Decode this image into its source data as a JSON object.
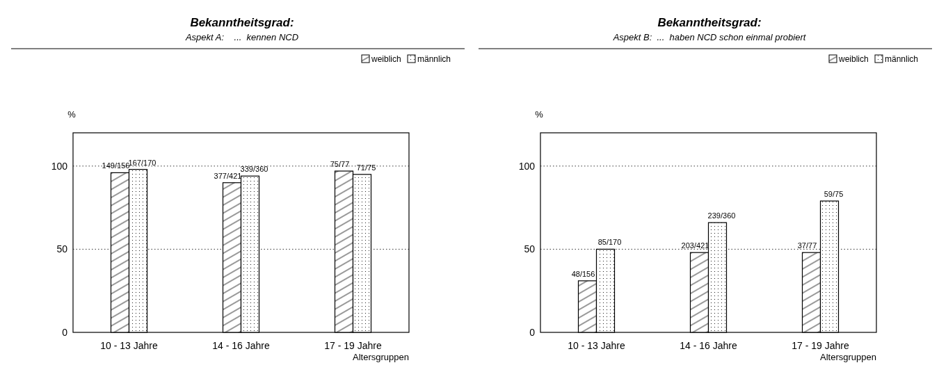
{
  "chart_data": [
    {
      "type": "bar",
      "title": "Bekanntheitsgrad:",
      "subtitle": "Aspekt A:    ...  kennen NCD",
      "ylabel": "%",
      "xlabel": "Altersgruppen",
      "categories": [
        "10 - 13 Jahre",
        "14 - 16 Jahre",
        "17 - 19 Jahre"
      ],
      "series": [
        {
          "name": "weiblich",
          "color": "#000000",
          "values": [
            96,
            90,
            97
          ],
          "value_labels": [
            "149/156",
            "377/421",
            "75/77"
          ]
        },
        {
          "name": "männlich",
          "color": "#000000",
          "values": [
            98,
            94,
            95
          ],
          "value_labels": [
            "167/170",
            "339/360",
            "71/75"
          ]
        }
      ],
      "ylim": [
        0,
        120
      ],
      "yticks": [
        0,
        50,
        100
      ],
      "grid": "y",
      "legend": "top right"
    },
    {
      "type": "bar",
      "title": "Bekanntheitsgrad:",
      "subtitle": "Aspekt B:  ...  haben NCD schon einmal probiert",
      "ylabel": "%",
      "xlabel": "Altersgruppen",
      "categories": [
        "10 - 13 Jahre",
        "14 - 16 Jahre",
        "17 - 19 Jahre"
      ],
      "series": [
        {
          "name": "weiblich",
          "color": "#000000",
          "values": [
            31,
            48,
            48
          ],
          "value_labels": [
            "48/156",
            "203/421",
            "37/77"
          ]
        },
        {
          "name": "männlich",
          "color": "#000000",
          "values": [
            50,
            66,
            79
          ],
          "value_labels": [
            "85/170",
            "239/360",
            "59/75"
          ]
        }
      ],
      "ylim": [
        0,
        120
      ],
      "yticks": [
        0,
        50,
        100
      ],
      "grid": "y",
      "legend": "top right"
    }
  ]
}
